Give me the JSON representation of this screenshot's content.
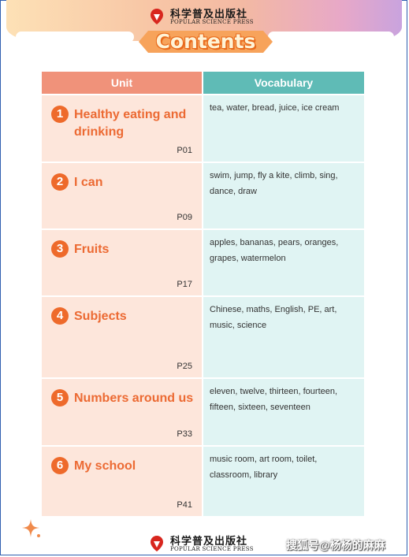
{
  "publisher": {
    "name_cn": "科学普及出版社",
    "name_en": "POPULAR SCIENCE PRESS"
  },
  "title": "Contents",
  "table": {
    "headers": {
      "unit": "Unit",
      "vocabulary": "Vocabulary"
    },
    "rows": [
      {
        "number": "1",
        "unit": "Healthy eating and drinking",
        "page": "P01",
        "vocabulary": "tea, water, bread, juice, ice cream"
      },
      {
        "number": "2",
        "unit": "I can",
        "page": "P09",
        "vocabulary": "swim, jump, fly a kite, climb, sing, dance, draw"
      },
      {
        "number": "3",
        "unit": "Fruits",
        "page": "P17",
        "vocabulary": "apples, bananas, pears, oranges, grapes, watermelon"
      },
      {
        "number": "4",
        "unit": "Subjects",
        "page": "P25",
        "vocabulary": "Chinese, maths, English, PE, art, music, science"
      },
      {
        "number": "5",
        "unit": "Numbers around us",
        "page": "P33",
        "vocabulary": "eleven, twelve, thirteen, fourteen, fifteen, sixteen, seventeen"
      },
      {
        "number": "6",
        "unit": "My school",
        "page": "P41",
        "vocabulary": "music room, art room, toilet, classroom, library"
      }
    ]
  },
  "watermark": "搜狐号@杨杨的麻麻",
  "colors": {
    "unit_header": "#f0927a",
    "vocab_header": "#5fbbb6",
    "unit_cell": "#fde6db",
    "vocab_cell": "#e0f4f3",
    "accent_orange": "#ec6a33"
  },
  "icons": {
    "publisher_logo": "press-logo-icon",
    "decoration": "sparkle-icon"
  }
}
